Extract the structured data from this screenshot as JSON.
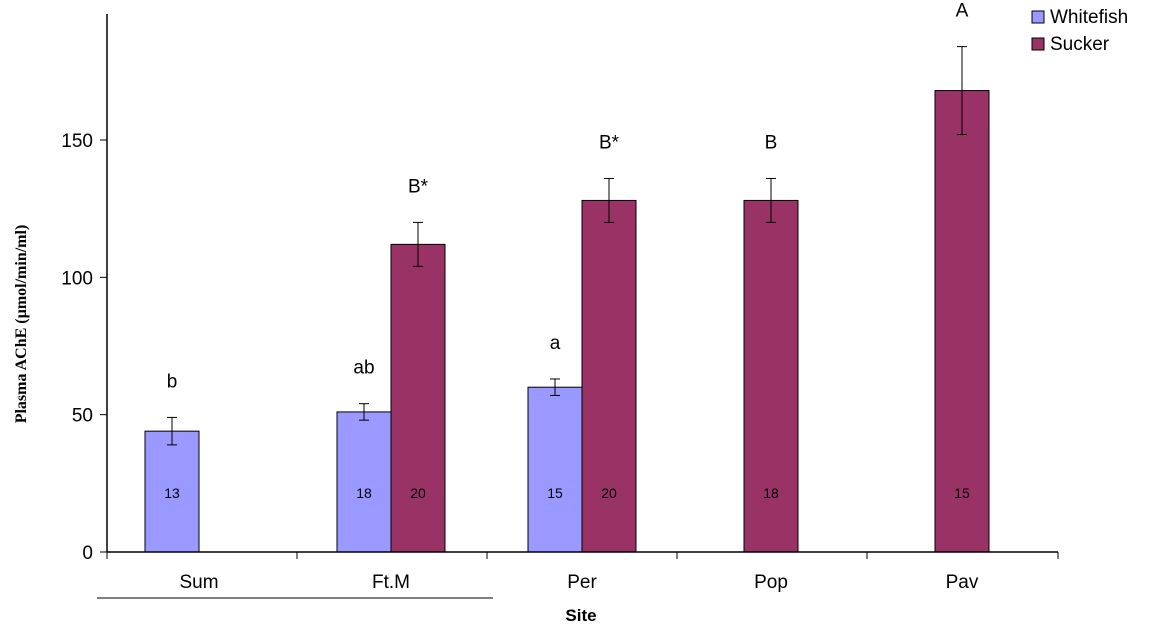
{
  "chart_data": {
    "type": "bar",
    "xlabel": "Site",
    "ylabel": "Plasma AChE (µmol/min/ml)",
    "ylim": [
      0,
      190
    ],
    "yticks": [
      0,
      50,
      100,
      150
    ],
    "categories": [
      "Sum",
      "Ft.M",
      "Per",
      "Pop",
      "Pav"
    ],
    "legend_position": "top-right",
    "grid": false,
    "series": [
      {
        "name": "Whitefish",
        "color": "#9999ff",
        "values": [
          44,
          51,
          60,
          null,
          null
        ],
        "errors": [
          5,
          3,
          3,
          null,
          null
        ],
        "n_labels": [
          "13",
          "18",
          "15",
          null,
          null
        ],
        "sig_labels": [
          "b",
          "ab",
          "a",
          null,
          null
        ]
      },
      {
        "name": "Sucker",
        "color": "#993366",
        "values": [
          null,
          112,
          128,
          128,
          168
        ],
        "errors": [
          null,
          8,
          8,
          8,
          16
        ],
        "n_labels": [
          null,
          "20",
          "20",
          "18",
          "15"
        ],
        "sig_labels": [
          null,
          "B*",
          "B*",
          "B",
          "A"
        ]
      }
    ]
  }
}
